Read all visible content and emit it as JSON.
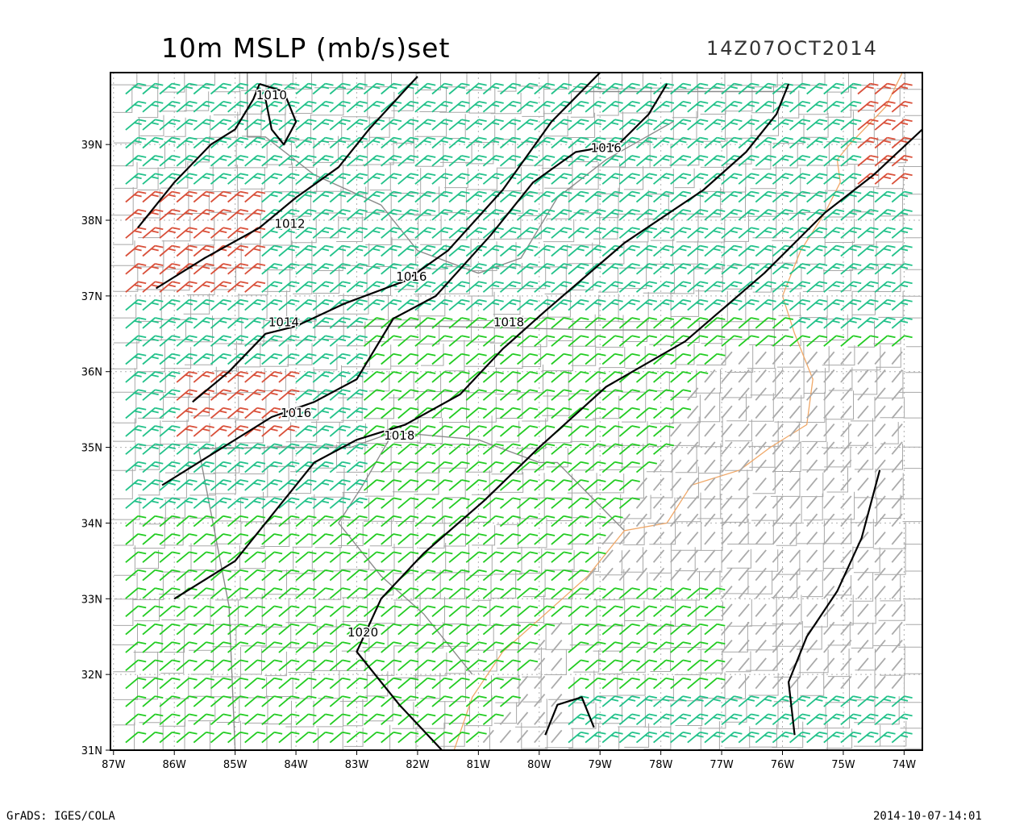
{
  "header": {
    "title": "10m MSLP (mb/s)set",
    "datetime": "14Z07OCT2014"
  },
  "footer": {
    "left": "GrADS: IGES/COLA",
    "right": "2014-10-07-14:01"
  },
  "map": {
    "lon_range": [
      -87,
      -74
    ],
    "lat_range": [
      31,
      40
    ],
    "x_ticks": [
      "87W",
      "86W",
      "85W",
      "84W",
      "83W",
      "82W",
      "81W",
      "80W",
      "79W",
      "78W",
      "77W",
      "76W",
      "75W",
      "74W"
    ],
    "y_ticks": [
      "31N",
      "32N",
      "33N",
      "34N",
      "35N",
      "36N",
      "37N",
      "38N",
      "39N"
    ],
    "isobar_labels": [
      {
        "text": "1010",
        "lon": -84.4,
        "lat": 39.6
      },
      {
        "text": "1012",
        "lon": -84.1,
        "lat": 37.9
      },
      {
        "text": "1014",
        "lon": -84.2,
        "lat": 36.6
      },
      {
        "text": "1016",
        "lon": -84.0,
        "lat": 35.4
      },
      {
        "text": "1016",
        "lon": -82.1,
        "lat": 37.2
      },
      {
        "text": "1016",
        "lon": -78.9,
        "lat": 38.9
      },
      {
        "text": "1018",
        "lon": -80.5,
        "lat": 36.6
      },
      {
        "text": "1018",
        "lon": -82.3,
        "lat": 35.1
      },
      {
        "text": "1020",
        "lon": -82.9,
        "lat": 32.5
      }
    ],
    "barb_colors": {
      "calm": "#aaaaaa",
      "light": "#22cc22",
      "moderate": "#22c28a",
      "strong": "#d9503a"
    },
    "colors": {
      "frame": "#000000",
      "county_lines": "#a8a8a8",
      "coastline": "#f0a868",
      "grid": "#b0b0b0"
    }
  }
}
